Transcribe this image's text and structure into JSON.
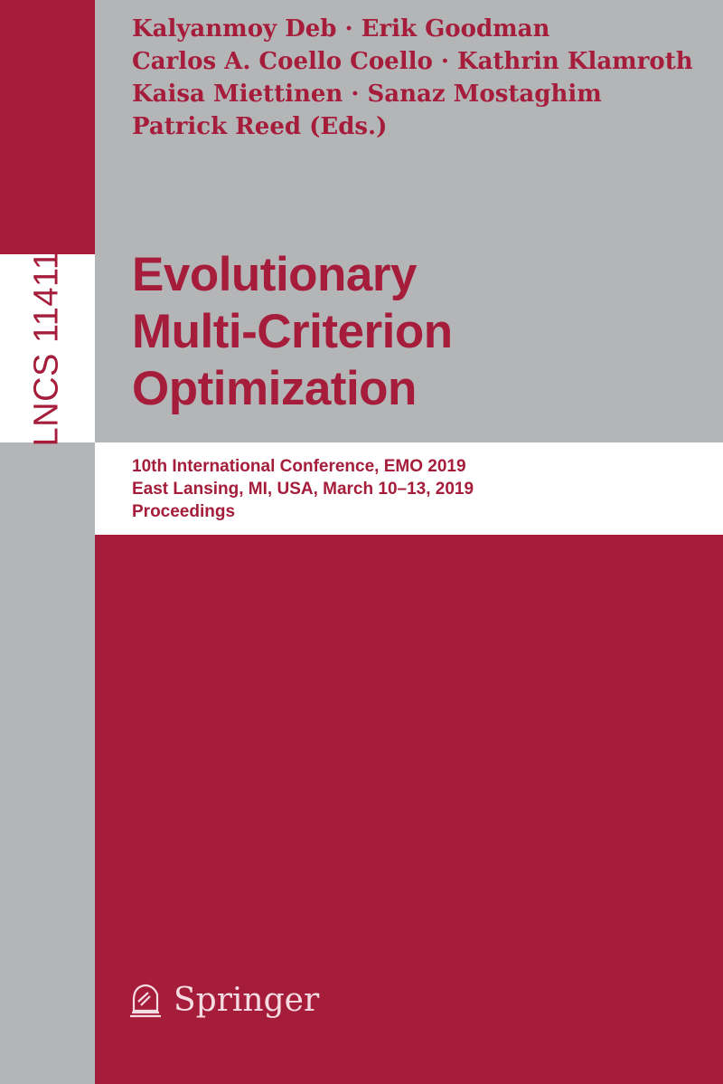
{
  "series": {
    "label": "LNCS 11411"
  },
  "authors": [
    "Kalyanmoy Deb · Erik Goodman",
    "Carlos A. Coello Coello · Kathrin Klamroth",
    "Kaisa Miettinen · Sanaz Mostaghim",
    "Patrick Reed (Eds.)"
  ],
  "title": [
    "Evolutionary",
    "Multi-Criterion",
    "Optimization"
  ],
  "subtitle": [
    "10th International Conference, EMO 2019",
    "East Lansing, MI, USA, March 10–13, 2019",
    "Proceedings"
  ],
  "publisher": {
    "name": "Springer",
    "icon": "chess-knight-icon"
  },
  "colors": {
    "brand_red": "#a51d3b",
    "grey": "#b4b5b7",
    "white": "#ffffff"
  }
}
